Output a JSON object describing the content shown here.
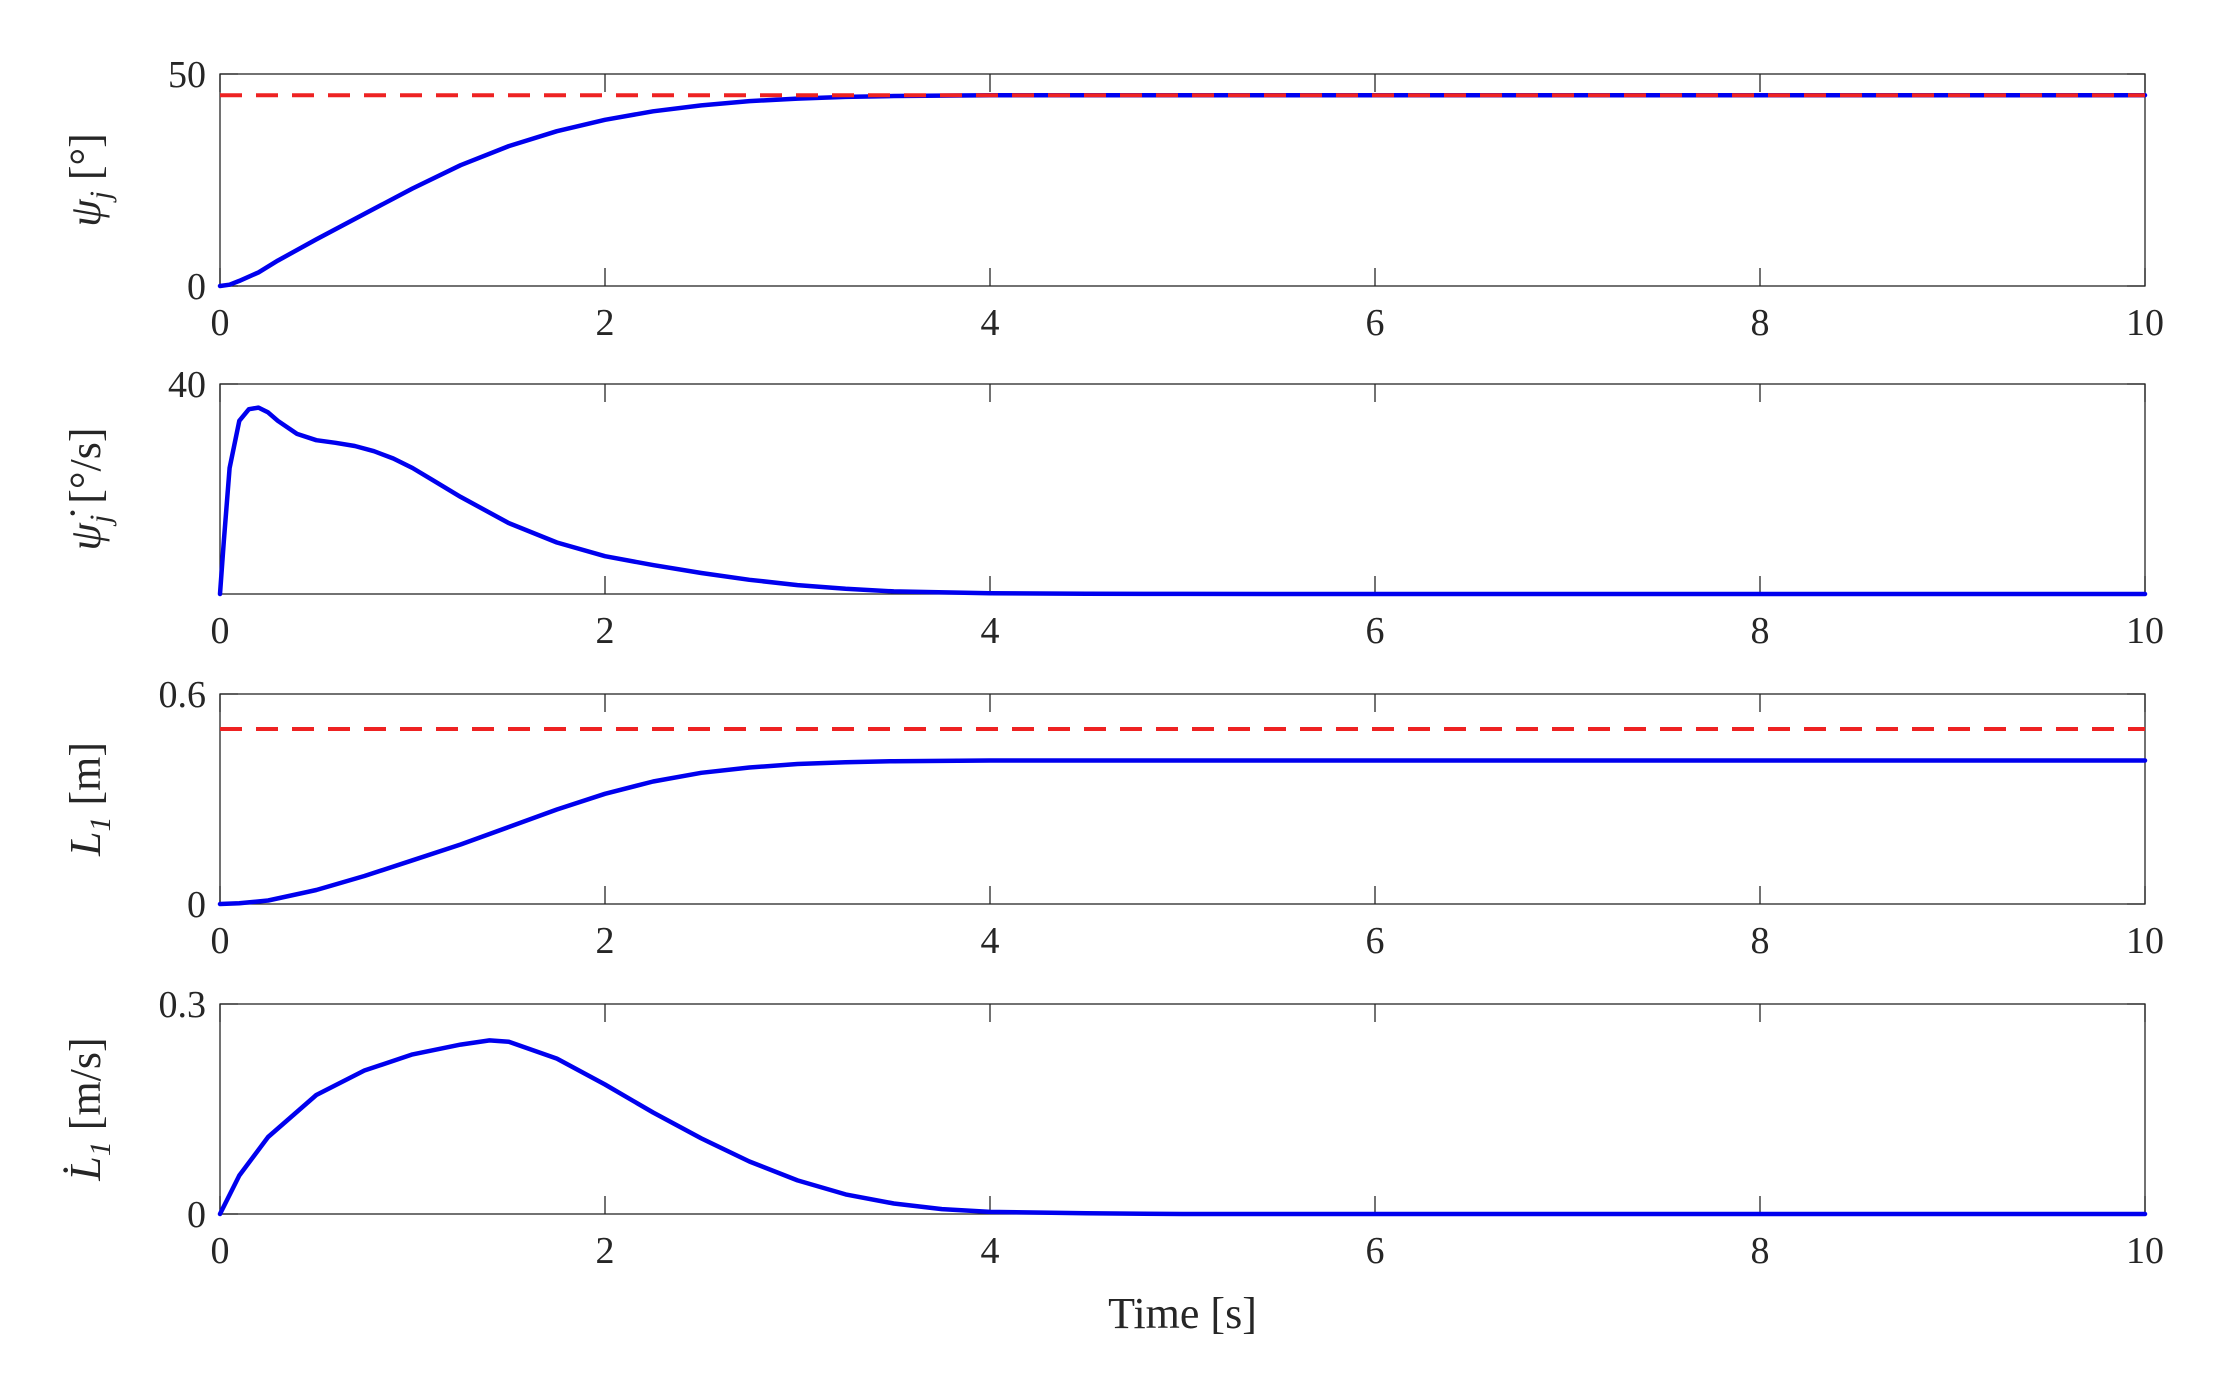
{
  "chart_data": [
    {
      "type": "line",
      "ylabel": "ψ_j [°]",
      "ylabel_parts": {
        "symbol": "ψ",
        "sub": "j",
        "unit": "[°]"
      },
      "xlim": [
        0,
        10
      ],
      "ylim": [
        0,
        50
      ],
      "xticks": [
        "0",
        "2",
        "4",
        "6",
        "8",
        "10"
      ],
      "yticks": [
        {
          "value": 0,
          "label": "0"
        },
        {
          "value": 50,
          "label": "50"
        }
      ],
      "series": [
        {
          "role": "response",
          "color": "#0000ee",
          "style": "solid",
          "x": [
            0,
            0.05,
            0.1,
            0.2,
            0.3,
            0.5,
            0.75,
            1.0,
            1.25,
            1.5,
            1.75,
            2.0,
            2.25,
            2.5,
            2.75,
            3.0,
            3.25,
            3.5,
            3.75,
            4.0,
            4.5,
            5,
            6,
            7,
            8,
            9,
            10
          ],
          "y": [
            0,
            0.3,
            1.2,
            3.2,
            6.0,
            11.0,
            17.0,
            23.0,
            28.5,
            33.0,
            36.5,
            39.2,
            41.2,
            42.6,
            43.6,
            44.2,
            44.6,
            44.8,
            44.9,
            45.0,
            45.0,
            45.0,
            45.0,
            45.0,
            45.0,
            45.0,
            45.0
          ]
        },
        {
          "role": "reference",
          "color": "#ee2222",
          "style": "dashed",
          "x": [
            0,
            10
          ],
          "y": [
            45,
            45
          ]
        }
      ]
    },
    {
      "type": "line",
      "ylabel": "ψ̇_j [°/s]",
      "ylabel_parts": {
        "symbol": "ψ̇",
        "sub": "j",
        "unit": "[°/s]"
      },
      "xlim": [
        0,
        10
      ],
      "ylim": [
        0,
        40
      ],
      "xticks": [
        "0",
        "2",
        "4",
        "6",
        "8",
        "10"
      ],
      "yticks": [
        {
          "value": 40,
          "label": "40"
        }
      ],
      "series": [
        {
          "role": "response",
          "color": "#0000ee",
          "style": "solid",
          "x": [
            0,
            0.02,
            0.05,
            0.1,
            0.15,
            0.2,
            0.25,
            0.3,
            0.4,
            0.5,
            0.6,
            0.7,
            0.8,
            0.9,
            1.0,
            1.1,
            1.25,
            1.5,
            1.75,
            2.0,
            2.25,
            2.5,
            2.75,
            3.0,
            3.25,
            3.5,
            4.0,
            4.5,
            5.0,
            6,
            7,
            8,
            9,
            10
          ],
          "y": [
            0,
            10,
            24,
            33,
            35.2,
            35.5,
            34.6,
            33.0,
            30.5,
            29.3,
            28.8,
            28.2,
            27.2,
            25.8,
            24.0,
            21.8,
            18.5,
            13.5,
            9.8,
            7.2,
            5.5,
            4.0,
            2.7,
            1.7,
            1.0,
            0.5,
            0.15,
            0.05,
            0.02,
            0,
            0,
            0,
            0,
            0
          ]
        }
      ]
    },
    {
      "type": "line",
      "ylabel": "L_1 [m]",
      "ylabel_parts": {
        "symbol": "L",
        "sub": "1",
        "unit": "[m]"
      },
      "xlim": [
        0,
        10
      ],
      "ylim": [
        0,
        0.6
      ],
      "xticks": [
        "0",
        "2",
        "4",
        "6",
        "8",
        "10"
      ],
      "yticks": [
        {
          "value": 0,
          "label": "0"
        },
        {
          "value": 0.6,
          "label": "0.6"
        }
      ],
      "series": [
        {
          "role": "response",
          "color": "#0000ee",
          "style": "solid",
          "x": [
            0,
            0.1,
            0.25,
            0.5,
            0.75,
            1.0,
            1.25,
            1.5,
            1.75,
            2.0,
            2.25,
            2.5,
            2.75,
            3.0,
            3.25,
            3.5,
            3.75,
            4.0,
            4.5,
            5,
            6,
            7,
            8,
            9,
            10
          ],
          "y": [
            0,
            0.002,
            0.01,
            0.04,
            0.08,
            0.125,
            0.17,
            0.22,
            0.27,
            0.315,
            0.35,
            0.375,
            0.39,
            0.4,
            0.405,
            0.408,
            0.409,
            0.41,
            0.41,
            0.41,
            0.41,
            0.41,
            0.41,
            0.41,
            0.41
          ]
        },
        {
          "role": "reference",
          "color": "#ee2222",
          "style": "dashed",
          "x": [
            0,
            10
          ],
          "y": [
            0.5,
            0.5
          ]
        }
      ]
    },
    {
      "type": "line",
      "ylabel": "L̇_1 [m/s]",
      "ylabel_parts": {
        "symbol": "L̇",
        "sub": "1",
        "unit": "[m/s]"
      },
      "xlim": [
        0,
        10
      ],
      "ylim": [
        0,
        0.3
      ],
      "xticks": [
        "0",
        "2",
        "4",
        "6",
        "8",
        "10"
      ],
      "yticks": [
        {
          "value": 0,
          "label": "0"
        },
        {
          "value": 0.3,
          "label": "0.3"
        }
      ],
      "xlabel": "Time [s]",
      "series": [
        {
          "role": "response",
          "color": "#0000ee",
          "style": "solid",
          "x": [
            0,
            0.1,
            0.25,
            0.5,
            0.75,
            1.0,
            1.25,
            1.4,
            1.5,
            1.75,
            2.0,
            2.25,
            2.5,
            2.75,
            3.0,
            3.25,
            3.5,
            3.75,
            4.0,
            4.5,
            5,
            6,
            7,
            8,
            9,
            10
          ],
          "y": [
            0,
            0.055,
            0.11,
            0.17,
            0.205,
            0.228,
            0.242,
            0.248,
            0.246,
            0.222,
            0.185,
            0.145,
            0.108,
            0.075,
            0.048,
            0.028,
            0.015,
            0.007,
            0.003,
            0.001,
            0,
            0,
            0,
            0,
            0,
            0
          ]
        }
      ]
    }
  ]
}
